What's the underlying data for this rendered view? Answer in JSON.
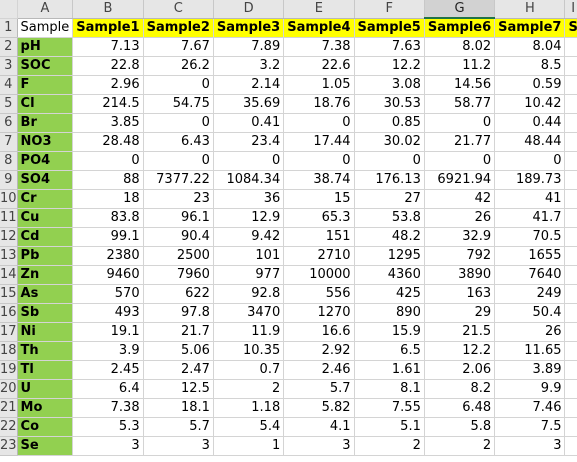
{
  "columns": [
    "A",
    "B",
    "C",
    "D",
    "E",
    "F",
    "G",
    "H",
    "I"
  ],
  "active_column": "G",
  "header_row": {
    "row_number": "1",
    "label": "Sample",
    "cells": [
      "Sample1",
      "Sample2",
      "Sample3",
      "Sample4",
      "Sample5",
      "Sample6",
      "Sample7",
      "S"
    ]
  },
  "rows": [
    {
      "n": "2",
      "label": "pH",
      "values": [
        "7.13",
        "7.67",
        "7.89",
        "7.38",
        "7.63",
        "8.02",
        "8.04",
        ""
      ]
    },
    {
      "n": "3",
      "label": "SOC",
      "values": [
        "22.8",
        "26.2",
        "3.2",
        "22.6",
        "12.2",
        "11.2",
        "8.5",
        ""
      ]
    },
    {
      "n": "4",
      "label": "F",
      "values": [
        "2.96",
        "0",
        "2.14",
        "1.05",
        "3.08",
        "14.56",
        "0.59",
        ""
      ]
    },
    {
      "n": "5",
      "label": "Cl",
      "values": [
        "214.5",
        "54.75",
        "35.69",
        "18.76",
        "30.53",
        "58.77",
        "10.42",
        ""
      ]
    },
    {
      "n": "6",
      "label": "Br",
      "values": [
        "3.85",
        "0",
        "0.41",
        "0",
        "0.85",
        "0",
        "0.44",
        ""
      ]
    },
    {
      "n": "7",
      "label": "NO3",
      "values": [
        "28.48",
        "6.43",
        "23.4",
        "17.44",
        "30.02",
        "21.77",
        "48.44",
        ""
      ]
    },
    {
      "n": "8",
      "label": "PO4",
      "values": [
        "0",
        "0",
        "0",
        "0",
        "0",
        "0",
        "0",
        ""
      ]
    },
    {
      "n": "9",
      "label": "SO4",
      "values": [
        "88",
        "7377.22",
        "1084.34",
        "38.74",
        "176.13",
        "6921.94",
        "189.73",
        ""
      ]
    },
    {
      "n": "10",
      "label": "Cr",
      "values": [
        "18",
        "23",
        "36",
        "15",
        "27",
        "42",
        "41",
        ""
      ]
    },
    {
      "n": "11",
      "label": "Cu",
      "values": [
        "83.8",
        "96.1",
        "12.9",
        "65.3",
        "53.8",
        "26",
        "41.7",
        ""
      ]
    },
    {
      "n": "12",
      "label": "Cd",
      "values": [
        "99.1",
        "90.4",
        "9.42",
        "151",
        "48.2",
        "32.9",
        "70.5",
        ""
      ]
    },
    {
      "n": "13",
      "label": "Pb",
      "values": [
        "2380",
        "2500",
        "101",
        "2710",
        "1295",
        "792",
        "1655",
        ""
      ]
    },
    {
      "n": "14",
      "label": "Zn",
      "values": [
        "9460",
        "7960",
        "977",
        "10000",
        "4360",
        "3890",
        "7640",
        ""
      ]
    },
    {
      "n": "15",
      "label": "As",
      "values": [
        "570",
        "622",
        "92.8",
        "556",
        "425",
        "163",
        "249",
        ""
      ]
    },
    {
      "n": "16",
      "label": "Sb",
      "values": [
        "493",
        "97.8",
        "3470",
        "1270",
        "890",
        "29",
        "50.4",
        ""
      ]
    },
    {
      "n": "17",
      "label": "Ni",
      "values": [
        "19.1",
        "21.7",
        "11.9",
        "16.6",
        "15.9",
        "21.5",
        "26",
        ""
      ]
    },
    {
      "n": "18",
      "label": "Th",
      "values": [
        "3.9",
        "5.06",
        "10.35",
        "2.92",
        "6.5",
        "12.2",
        "11.65",
        ""
      ]
    },
    {
      "n": "19",
      "label": "Tl",
      "values": [
        "2.45",
        "2.47",
        "0.7",
        "2.46",
        "1.61",
        "2.06",
        "3.89",
        ""
      ]
    },
    {
      "n": "20",
      "label": "U",
      "values": [
        "6.4",
        "12.5",
        "2",
        "5.7",
        "8.1",
        "8.2",
        "9.9",
        ""
      ]
    },
    {
      "n": "21",
      "label": "Mo",
      "values": [
        "7.38",
        "18.1",
        "1.18",
        "5.82",
        "7.55",
        "6.48",
        "7.46",
        ""
      ]
    },
    {
      "n": "22",
      "label": "Co",
      "values": [
        "5.3",
        "5.7",
        "5.4",
        "4.1",
        "5.1",
        "5.8",
        "7.5",
        ""
      ]
    },
    {
      "n": "23",
      "label": "Se",
      "values": [
        "3",
        "3",
        "1",
        "3",
        "2",
        "2",
        "3",
        ""
      ]
    }
  ]
}
